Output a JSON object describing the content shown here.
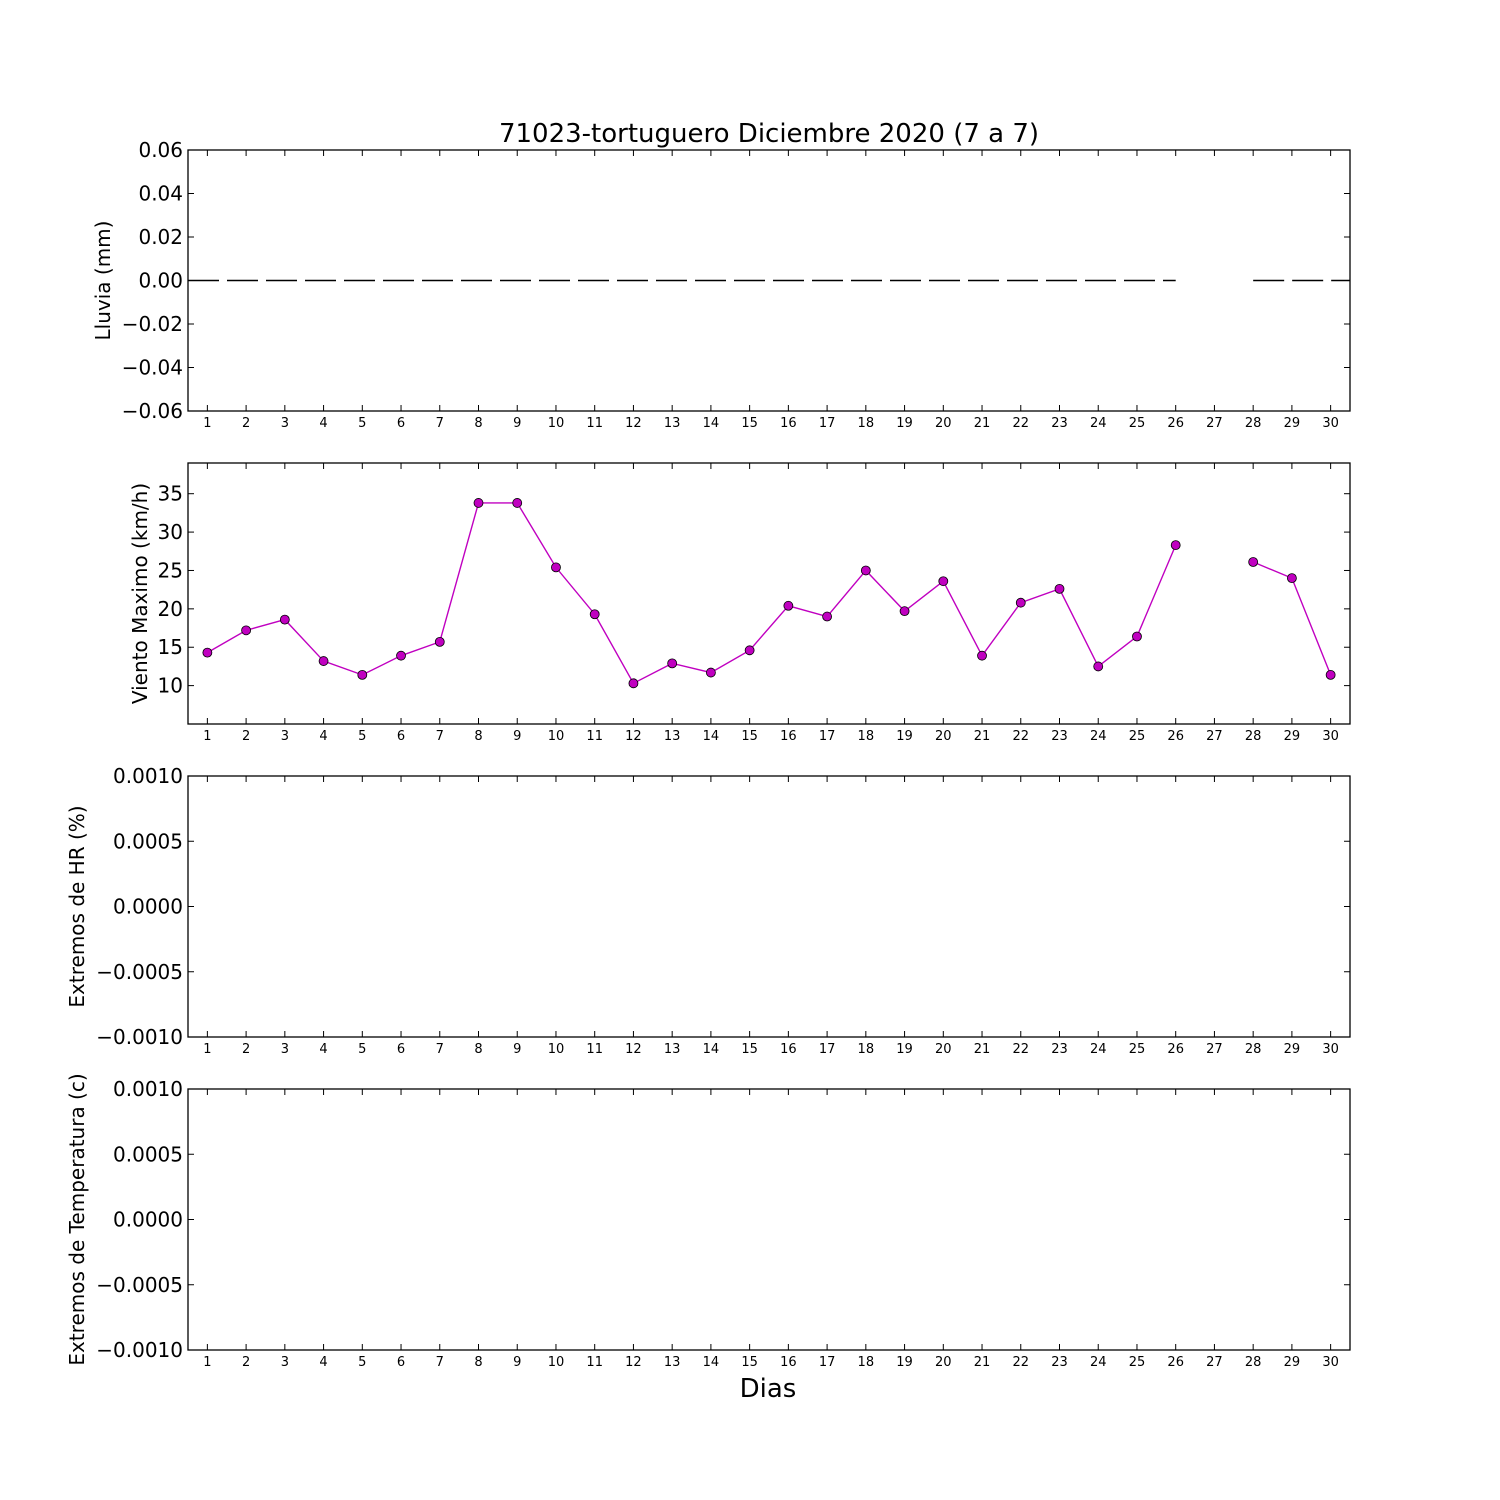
{
  "figure": {
    "title": "71023-tortuguero Diciembre 2020  (7 a 7)",
    "xlabel": "Dias"
  },
  "chart_data": [
    {
      "type": "line",
      "ylabel": "Lluvia (mm)",
      "x": [
        1,
        2,
        3,
        4,
        5,
        6,
        7,
        8,
        9,
        10,
        11,
        12,
        13,
        14,
        15,
        16,
        17,
        18,
        19,
        20,
        21,
        22,
        23,
        24,
        25,
        26,
        27,
        28,
        29,
        30
      ],
      "xlim": [
        0.5,
        30.5
      ],
      "ylim": [
        -0.06,
        0.06
      ],
      "yticks": [
        "0.06",
        "0.04",
        "0.02",
        "0.00",
        "−0.02",
        "−0.04",
        "−0.06"
      ],
      "series": [
        {
          "marker": "none",
          "line_style": "dashed",
          "color": "#000000",
          "values": [
            0,
            0,
            0,
            0,
            0,
            0,
            0,
            0,
            0,
            0,
            0,
            0,
            0,
            0,
            0,
            0,
            0,
            0,
            0,
            0,
            0,
            0,
            0,
            0,
            0,
            0,
            null,
            0,
            0,
            0
          ]
        }
      ]
    },
    {
      "type": "line",
      "ylabel": "Viento Maximo (km/h)",
      "x": [
        1,
        2,
        3,
        4,
        5,
        6,
        7,
        8,
        9,
        10,
        11,
        12,
        13,
        14,
        15,
        16,
        17,
        18,
        19,
        20,
        21,
        22,
        23,
        24,
        25,
        26,
        27,
        28,
        29,
        30
      ],
      "xlim": [
        0.5,
        30.5
      ],
      "ylim": [
        5,
        39
      ],
      "yticks": [
        "35",
        "30",
        "25",
        "20",
        "15",
        "10"
      ],
      "series": [
        {
          "marker": "circle",
          "line_style": "solid",
          "color": "#c000c0",
          "values": [
            14.3,
            17.2,
            18.6,
            13.2,
            11.4,
            13.9,
            15.7,
            33.8,
            33.8,
            25.4,
            19.3,
            10.3,
            12.9,
            11.7,
            14.6,
            20.4,
            19.0,
            25.0,
            19.7,
            23.6,
            13.9,
            20.8,
            22.6,
            12.5,
            16.4,
            28.3,
            null,
            26.1,
            24.0,
            11.4
          ]
        }
      ]
    },
    {
      "type": "line",
      "ylabel": "Extremos de HR (%)",
      "x": [
        1,
        2,
        3,
        4,
        5,
        6,
        7,
        8,
        9,
        10,
        11,
        12,
        13,
        14,
        15,
        16,
        17,
        18,
        19,
        20,
        21,
        22,
        23,
        24,
        25,
        26,
        27,
        28,
        29,
        30
      ],
      "xlim": [
        0.5,
        30.5
      ],
      "ylim": [
        -0.001,
        0.001
      ],
      "yticks": [
        "0.0010",
        "0.0005",
        "0.0000",
        "−0.0005",
        "−0.0010"
      ],
      "series": []
    },
    {
      "type": "line",
      "ylabel": "Extremos de Temperatura (c)",
      "x": [
        1,
        2,
        3,
        4,
        5,
        6,
        7,
        8,
        9,
        10,
        11,
        12,
        13,
        14,
        15,
        16,
        17,
        18,
        19,
        20,
        21,
        22,
        23,
        24,
        25,
        26,
        27,
        28,
        29,
        30
      ],
      "xlim": [
        0.5,
        30.5
      ],
      "ylim": [
        -0.001,
        0.001
      ],
      "yticks": [
        "0.0010",
        "0.0005",
        "0.0000",
        "−0.0005",
        "−0.0010"
      ],
      "series": []
    }
  ]
}
